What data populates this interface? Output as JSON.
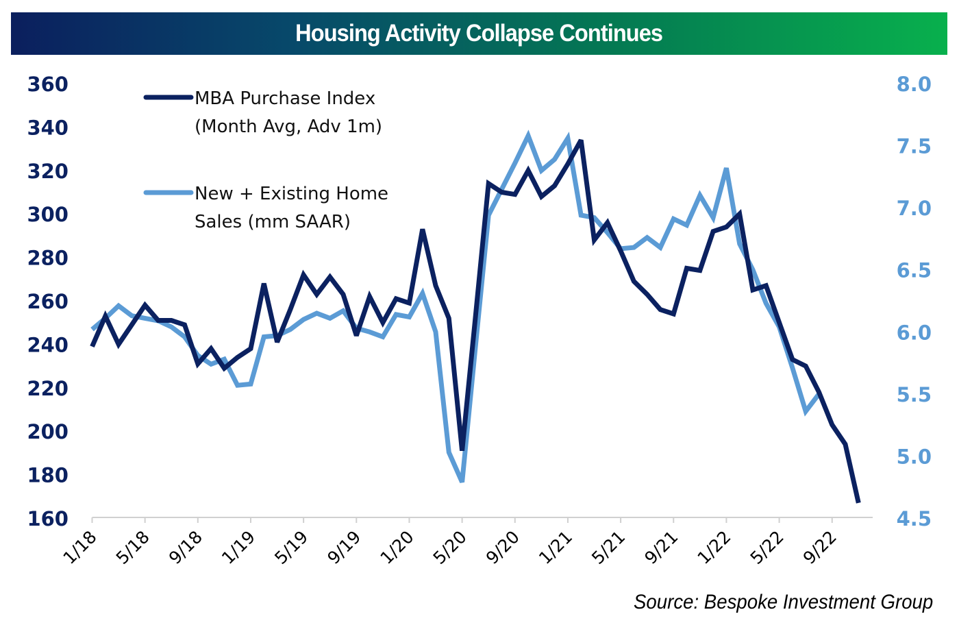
{
  "header": {
    "title": "Housing Activity Collapse Continues"
  },
  "source": "Source: Bespoke Investment Group",
  "colors": {
    "mba": "#0b2160",
    "sales": "#5b9bd5",
    "left_axis_text": "#0b2160",
    "right_axis_text": "#5b9bd5",
    "axis_line": "#d0d0d0",
    "title_gradient_start": "#0b1f5e",
    "title_gradient_end": "#08b04d"
  },
  "chart_data": {
    "type": "line",
    "title": "Housing Activity Collapse Continues",
    "xlabel": "",
    "x_start": "1/18",
    "x_frequency": "monthly",
    "x_tick_labels": [
      "1/18",
      "5/18",
      "9/18",
      "1/19",
      "5/19",
      "9/19",
      "1/20",
      "5/20",
      "9/20",
      "1/21",
      "5/21",
      "9/21",
      "1/22",
      "5/22",
      "9/22"
    ],
    "x_tick_step_months": 4,
    "x_range_months": [
      0,
      59
    ],
    "y_left": {
      "label": "",
      "ylim": [
        160,
        360
      ],
      "ticks": [
        360,
        340,
        320,
        300,
        280,
        260,
        240,
        220,
        200,
        180,
        160
      ]
    },
    "y_right": {
      "label": "",
      "ylim": [
        4.5,
        8.0
      ],
      "ticks": [
        "8.0",
        "7.5",
        "7.0",
        "6.5",
        "6.0",
        "5.5",
        "5.0",
        "4.5"
      ]
    },
    "grid": false,
    "legend_position": "top-left",
    "series": [
      {
        "name": "MBA Purchase Index (Month Avg, Adv 1m)",
        "legend_lines": [
          "MBA Purchase Index",
          "(Month Avg, Adv 1m)"
        ],
        "axis": "left",
        "values": [
          239,
          253,
          240,
          249,
          258,
          251,
          251,
          249,
          231,
          238,
          229,
          234,
          238,
          268,
          241,
          256,
          272,
          263,
          271,
          263,
          244,
          262,
          250,
          261,
          259,
          293,
          267,
          252,
          191,
          252,
          314,
          310,
          309,
          320,
          308,
          313,
          323,
          334,
          288,
          296,
          283,
          269,
          263,
          256,
          254,
          275,
          274,
          292,
          294,
          300,
          265,
          267,
          250,
          233,
          230,
          218,
          203,
          194,
          167
        ]
      },
      {
        "name": "New + Existing Home Sales (mm SAAR)",
        "legend_lines": [
          "New + Existing Home",
          "Sales (mm SAAR)"
        ],
        "axis": "right",
        "values": [
          6.02,
          6.11,
          6.21,
          6.13,
          6.11,
          6.09,
          6.04,
          5.96,
          5.81,
          5.74,
          5.78,
          5.57,
          5.58,
          5.96,
          5.97,
          6.02,
          6.1,
          6.15,
          6.11,
          6.17,
          6.03,
          6.0,
          5.96,
          6.14,
          6.12,
          6.31,
          6.0,
          5.03,
          4.79,
          5.87,
          6.94,
          7.15,
          7.36,
          7.58,
          7.3,
          7.39,
          7.56,
          6.94,
          6.92,
          6.8,
          6.67,
          6.68,
          6.76,
          6.68,
          6.91,
          6.86,
          7.1,
          6.92,
          7.32,
          6.71,
          6.5,
          6.23,
          6.04,
          5.71,
          5.36,
          5.5
        ]
      }
    ]
  }
}
